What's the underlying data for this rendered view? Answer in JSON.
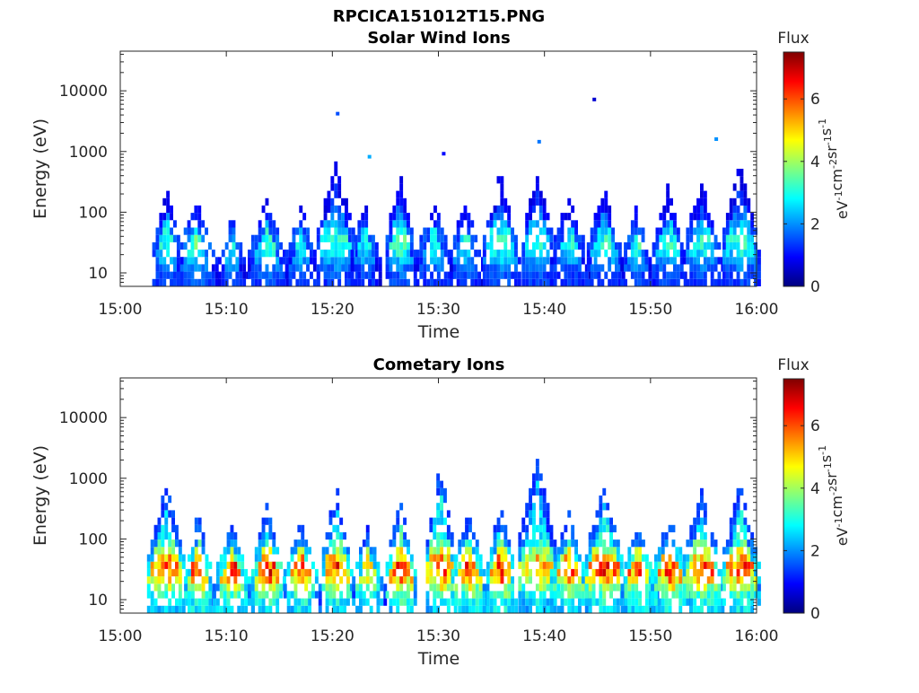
{
  "figure_title": "RPCICA151012T15.PNG",
  "chart_data": [
    {
      "type": "heatmap",
      "title": "Solar Wind Ions",
      "xlabel": "Time",
      "ylabel": "Energy (eV)",
      "x_ticks": [
        "15:00",
        "15:10",
        "15:20",
        "15:30",
        "15:40",
        "15:50",
        "16:00"
      ],
      "y_ticks": [
        "10",
        "100",
        "1000",
        "10000"
      ],
      "x_range": [
        "15:00",
        "16:00"
      ],
      "y_range": [
        6,
        45000
      ],
      "y_scale": "log",
      "colorbar": {
        "title": "Flux",
        "label": "eV-1cm-2sr-1s-1",
        "label_parts": [
          "eV",
          "-1",
          "cm",
          "-2",
          "sr",
          "-1",
          "s",
          "-1"
        ],
        "range": [
          0,
          7.5
        ],
        "ticks": [
          "0",
          "2",
          "4",
          "6"
        ],
        "colormap": "jet"
      },
      "bursts": [
        {
          "t": 4.5,
          "peak_e": 190,
          "max_flux": 3.5
        },
        {
          "t": 7.3,
          "peak_e": 120,
          "max_flux": 3.8
        },
        {
          "t": 10.7,
          "peak_e": 60,
          "max_flux": 3.6
        },
        {
          "t": 14.0,
          "peak_e": 120,
          "max_flux": 3.6
        },
        {
          "t": 17.2,
          "peak_e": 90,
          "max_flux": 3.4
        },
        {
          "t": 20.5,
          "peak_e": 500,
          "max_flux": 3.5
        },
        {
          "t": 23.2,
          "peak_e": 120,
          "max_flux": 3.2
        },
        {
          "t": 26.5,
          "peak_e": 330,
          "max_flux": 3.7
        },
        {
          "t": 29.7,
          "peak_e": 120,
          "max_flux": 3.4
        },
        {
          "t": 32.7,
          "peak_e": 120,
          "max_flux": 3.3
        },
        {
          "t": 36.0,
          "peak_e": 330,
          "max_flux": 3.6
        },
        {
          "t": 39.5,
          "peak_e": 400,
          "max_flux": 3.4
        },
        {
          "t": 42.5,
          "peak_e": 130,
          "max_flux": 3.2
        },
        {
          "t": 45.8,
          "peak_e": 200,
          "max_flux": 3.4
        },
        {
          "t": 48.8,
          "peak_e": 80,
          "max_flux": 3.5
        },
        {
          "t": 51.8,
          "peak_e": 190,
          "max_flux": 3.4
        },
        {
          "t": 55.0,
          "peak_e": 220,
          "max_flux": 3.4
        },
        {
          "t": 58.6,
          "peak_e": 500,
          "max_flux": 3.5
        }
      ],
      "isolated_points": [
        {
          "t": 20.5,
          "e": 4200,
          "flux": 1.5
        },
        {
          "t": 23.5,
          "e": 820,
          "flux": 2.2
        },
        {
          "t": 30.5,
          "e": 920,
          "flux": 1.0
        },
        {
          "t": 39.5,
          "e": 1450,
          "flux": 1.8
        },
        {
          "t": 44.7,
          "e": 7200,
          "flux": 0.6
        },
        {
          "t": 56.2,
          "e": 1600,
          "flux": 2.0
        }
      ]
    },
    {
      "type": "heatmap",
      "title": "Cometary Ions",
      "xlabel": "Time",
      "ylabel": "Energy (eV)",
      "x_ticks": [
        "15:00",
        "15:10",
        "15:20",
        "15:30",
        "15:40",
        "15:50",
        "16:00"
      ],
      "y_ticks": [
        "10",
        "100",
        "1000",
        "10000"
      ],
      "x_range": [
        "15:00",
        "16:00"
      ],
      "y_range": [
        6,
        45000
      ],
      "y_scale": "log",
      "colorbar": {
        "title": "Flux",
        "label": "eV-1cm-2sr-1s-1",
        "label_parts": [
          "eV",
          "-1",
          "cm",
          "-2",
          "sr",
          "-1",
          "s",
          "-1"
        ],
        "range": [
          0,
          7.5
        ],
        "ticks": [
          "0",
          "2",
          "4",
          "6"
        ],
        "colormap": "jet"
      },
      "bursts": [
        {
          "t": 4.5,
          "peak_e": 550,
          "max_flux": 6.3
        },
        {
          "t": 7.5,
          "peak_e": 200,
          "max_flux": 6.8
        },
        {
          "t": 10.7,
          "peak_e": 120,
          "max_flux": 6.6
        },
        {
          "t": 14.0,
          "peak_e": 260,
          "max_flux": 6.8
        },
        {
          "t": 17.2,
          "peak_e": 150,
          "max_flux": 6.4
        },
        {
          "t": 20.5,
          "peak_e": 600,
          "max_flux": 6.5
        },
        {
          "t": 23.5,
          "peak_e": 130,
          "max_flux": 5.5
        },
        {
          "t": 26.5,
          "peak_e": 350,
          "max_flux": 6.9
        },
        {
          "t": 30.3,
          "peak_e": 1300,
          "max_flux": 6.6
        },
        {
          "t": 33.0,
          "peak_e": 200,
          "max_flux": 6.6
        },
        {
          "t": 36.0,
          "peak_e": 300,
          "max_flux": 6.8
        },
        {
          "t": 39.5,
          "peak_e": 1500,
          "max_flux": 6.0
        },
        {
          "t": 42.5,
          "peak_e": 200,
          "max_flux": 6.4
        },
        {
          "t": 45.8,
          "peak_e": 620,
          "max_flux": 6.6
        },
        {
          "t": 49.0,
          "peak_e": 150,
          "max_flux": 6.6
        },
        {
          "t": 52.0,
          "peak_e": 200,
          "max_flux": 6.8
        },
        {
          "t": 55.0,
          "peak_e": 450,
          "max_flux": 6.6
        },
        {
          "t": 58.6,
          "peak_e": 620,
          "max_flux": 6.5
        }
      ],
      "isolated_points": []
    }
  ]
}
